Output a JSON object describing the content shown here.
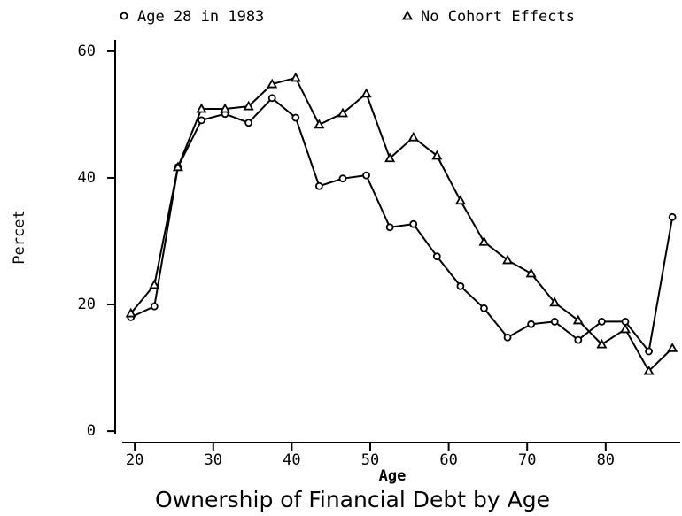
{
  "chart_data": {
    "type": "line",
    "title": "Ownership of Financial Debt by Age",
    "xlabel": "Age",
    "ylabel": "Percet",
    "x": [
      19.5,
      22.5,
      25.5,
      28.5,
      31.5,
      34.5,
      37.5,
      40.5,
      43.5,
      46.5,
      49.5,
      52.5,
      55.5,
      58.5,
      61.5,
      64.5,
      67.5,
      70.5,
      73.5,
      76.5,
      79.5,
      82.5,
      85.5,
      88.5
    ],
    "series": [
      {
        "name": "Age 28 in 1983",
        "color": "#000000",
        "marker": "circle",
        "values": [
          18.0,
          19.7,
          41.7,
          49.1,
          50.1,
          48.7,
          52.6,
          49.5,
          38.7,
          39.9,
          40.4,
          32.2,
          32.7,
          27.6,
          22.9,
          19.4,
          14.8,
          16.9,
          17.3,
          14.4,
          17.3,
          17.3,
          12.6,
          33.8
        ]
      },
      {
        "name": "No Cohort Effects",
        "color": "#000000",
        "marker": "triangle",
        "values": [
          18.6,
          23.1,
          41.7,
          50.9,
          50.9,
          51.3,
          54.8,
          55.8,
          48.4,
          50.2,
          53.3,
          43.1,
          46.4,
          43.5,
          36.4,
          29.9,
          27.0,
          24.9,
          20.3,
          17.5,
          13.7,
          16.1,
          9.5,
          13.1
        ]
      }
    ],
    "xlim": [
      17.5,
      89.5
    ],
    "xticks": [
      20,
      30,
      40,
      50,
      60,
      70,
      80
    ],
    "ylim": [
      -1.8,
      61.8
    ],
    "yticks": [
      0,
      20,
      40,
      60
    ],
    "grid": false
  }
}
